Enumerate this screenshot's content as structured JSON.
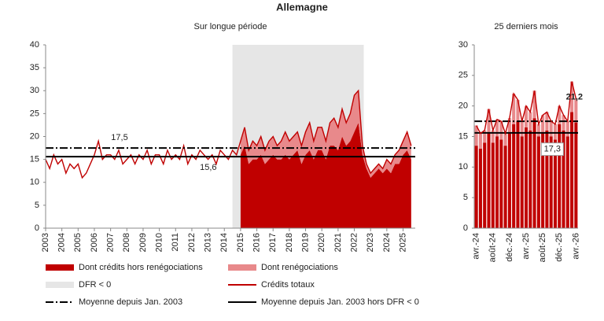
{
  "title": "Allemagne",
  "chart_data": [
    {
      "type": "area_line",
      "title": "Sur longue période",
      "x": [
        2003,
        2003.25,
        2003.5,
        2003.75,
        2004,
        2004.25,
        2004.5,
        2004.75,
        2005,
        2005.25,
        2005.5,
        2005.75,
        2006,
        2006.25,
        2006.5,
        2006.75,
        2007,
        2007.25,
        2007.5,
        2007.75,
        2008,
        2008.25,
        2008.5,
        2008.75,
        2009,
        2009.25,
        2009.5,
        2009.75,
        2010,
        2010.25,
        2010.5,
        2010.75,
        2011,
        2011.25,
        2011.5,
        2011.75,
        2012,
        2012.25,
        2012.5,
        2012.75,
        2013,
        2013.25,
        2013.5,
        2013.75,
        2014,
        2014.25,
        2014.5,
        2014.75,
        2015,
        2015.25,
        2015.5,
        2015.75,
        2016,
        2016.25,
        2016.5,
        2016.75,
        2017,
        2017.25,
        2017.5,
        2017.75,
        2018,
        2018.25,
        2018.5,
        2018.75,
        2019,
        2019.25,
        2019.5,
        2019.75,
        2020,
        2020.25,
        2020.5,
        2020.75,
        2021,
        2021.25,
        2021.5,
        2021.75,
        2022,
        2022.25,
        2022.5,
        2022.75,
        2023,
        2023.25,
        2023.5,
        2023.75,
        2024,
        2024.25,
        2024.5,
        2024.75,
        2025,
        2025.25,
        2025.5
      ],
      "series": [
        {
          "name": "Dont crédits hors renégociations",
          "color": "#c00000",
          "stack": true,
          "values": [
            null,
            null,
            null,
            null,
            null,
            null,
            null,
            null,
            null,
            null,
            null,
            null,
            null,
            null,
            null,
            null,
            null,
            null,
            null,
            null,
            null,
            null,
            null,
            null,
            null,
            null,
            null,
            null,
            null,
            null,
            null,
            null,
            null,
            null,
            null,
            null,
            null,
            null,
            null,
            null,
            null,
            null,
            null,
            null,
            null,
            null,
            null,
            null,
            16,
            18,
            14,
            15,
            15,
            16,
            14,
            15,
            16,
            15,
            15,
            16,
            15,
            16,
            17,
            14,
            16,
            17,
            15,
            17,
            17,
            15,
            18,
            18,
            17,
            20,
            18,
            19,
            21,
            23,
            16,
            13,
            11,
            12,
            13,
            12,
            13,
            12,
            14,
            14,
            16,
            17,
            15
          ]
        },
        {
          "name": "Dont renégociations",
          "color": "#e8898b",
          "stack": true,
          "values": [
            null,
            null,
            null,
            null,
            null,
            null,
            null,
            null,
            null,
            null,
            null,
            null,
            null,
            null,
            null,
            null,
            null,
            null,
            null,
            null,
            null,
            null,
            null,
            null,
            null,
            null,
            null,
            null,
            null,
            null,
            null,
            null,
            null,
            null,
            null,
            null,
            null,
            null,
            null,
            null,
            null,
            null,
            null,
            null,
            null,
            null,
            null,
            null,
            3,
            4,
            3,
            4,
            3,
            4,
            3,
            4,
            4,
            3,
            4,
            5,
            4,
            4,
            4,
            4,
            5,
            6,
            4,
            5,
            5,
            4,
            5,
            6,
            5,
            6,
            5,
            6,
            8,
            7,
            2,
            1,
            1,
            1,
            1,
            1,
            2,
            2,
            2,
            3,
            3,
            4,
            3
          ]
        },
        {
          "name": "Crédits totaux",
          "color": "#c00000",
          "values": [
            15,
            13,
            16,
            14,
            15,
            12,
            14,
            13,
            14,
            11,
            12,
            14,
            16,
            19,
            15,
            16,
            16,
            15,
            17,
            14,
            15,
            16,
            14,
            16,
            15,
            17,
            14,
            16,
            16,
            14,
            17,
            15,
            16,
            15,
            18,
            14,
            16,
            15,
            17,
            16,
            15,
            16,
            14,
            17,
            16,
            15,
            17,
            16,
            19,
            22,
            17,
            19,
            18,
            20,
            17,
            19,
            20,
            18,
            19,
            21,
            19,
            20,
            21,
            18,
            21,
            23,
            19,
            22,
            22,
            19,
            23,
            24,
            22,
            26,
            23,
            25,
            29,
            30,
            18,
            14,
            12,
            13,
            14,
            13,
            15,
            14,
            16,
            17,
            19,
            21,
            18
          ]
        }
      ],
      "shaded_span": {
        "name": "DFR < 0",
        "x": [
          2014.5,
          2022.58
        ],
        "color": "#e6e6e6"
      },
      "reference_lines": [
        {
          "name": "Moyenne depuis Jan. 2003",
          "value": 17.5,
          "label": "17,5",
          "style": "dashdot"
        },
        {
          "name": "Moyenne depuis Jan. 2003 hors DFR < 0",
          "value": 15.6,
          "label": "15,6",
          "style": "solid"
        }
      ],
      "xlim": [
        2003,
        2025.75
      ],
      "xticks": [
        2003,
        2004,
        2005,
        2006,
        2007,
        2008,
        2009,
        2010,
        2011,
        2012,
        2013,
        2014,
        2015,
        2016,
        2017,
        2018,
        2019,
        2020,
        2021,
        2022,
        2023,
        2024,
        2025
      ],
      "ylim": [
        0,
        40
      ],
      "yticks": [
        0,
        5,
        10,
        15,
        20,
        25,
        30,
        35,
        40
      ],
      "grid": false
    },
    {
      "type": "bar_line",
      "title": "25 derniers mois",
      "categories": [
        "avr.-24",
        null,
        null,
        null,
        "août-24",
        null,
        null,
        null,
        "déc.-24",
        null,
        null,
        null,
        "avr.-25",
        null,
        null,
        null,
        "août-25",
        null,
        null,
        null,
        "déc.-25",
        null,
        null,
        null,
        "avr.-26"
      ],
      "series": [
        {
          "color": "#c00000",
          "stack": true,
          "values": [
            13.5,
            13,
            14,
            15.5,
            14,
            15,
            14.5,
            13.5,
            15.5,
            17,
            17.5,
            15,
            16.5,
            16,
            18,
            15,
            15.5,
            16,
            15,
            14.5,
            17,
            16,
            15,
            19,
            17.3
          ],
          "value_labels": [
            null,
            null,
            null,
            null,
            null,
            null,
            null,
            null,
            null,
            null,
            null,
            null,
            null,
            null,
            null,
            null,
            null,
            null,
            null,
            null,
            null,
            null,
            null,
            null,
            "17,3"
          ]
        },
        {
          "color": "#e8898b",
          "stack": true,
          "values": [
            3.3,
            2.5,
            2,
            4,
            2,
            2.8,
            3,
            2,
            2.5,
            5,
            3.5,
            2.5,
            3.5,
            3,
            4.5,
            2,
            3,
            3,
            2.5,
            2.5,
            3,
            2.5,
            2.5,
            5,
            3.9
          ]
        },
        {
          "color": "#c00000",
          "values": [
            16.8,
            15.5,
            16,
            19.5,
            16,
            17.8,
            17.5,
            15.5,
            18,
            22,
            21,
            17.5,
            20,
            19,
            22.5,
            17,
            18.5,
            19,
            17.5,
            17,
            20,
            18.5,
            17.5,
            24,
            21.2
          ],
          "value_labels": [
            null,
            null,
            null,
            null,
            null,
            null,
            null,
            null,
            null,
            null,
            null,
            null,
            null,
            null,
            null,
            null,
            null,
            null,
            null,
            null,
            null,
            null,
            null,
            null,
            "21,2"
          ]
        }
      ],
      "reference_lines": [
        {
          "value": 17.5,
          "style": "dashdot"
        },
        {
          "value": 15.6,
          "style": "solid"
        }
      ],
      "ylim": [
        0,
        30
      ],
      "yticks": [
        0,
        5,
        10,
        15,
        20,
        25,
        30
      ],
      "grid": false
    }
  ]
}
